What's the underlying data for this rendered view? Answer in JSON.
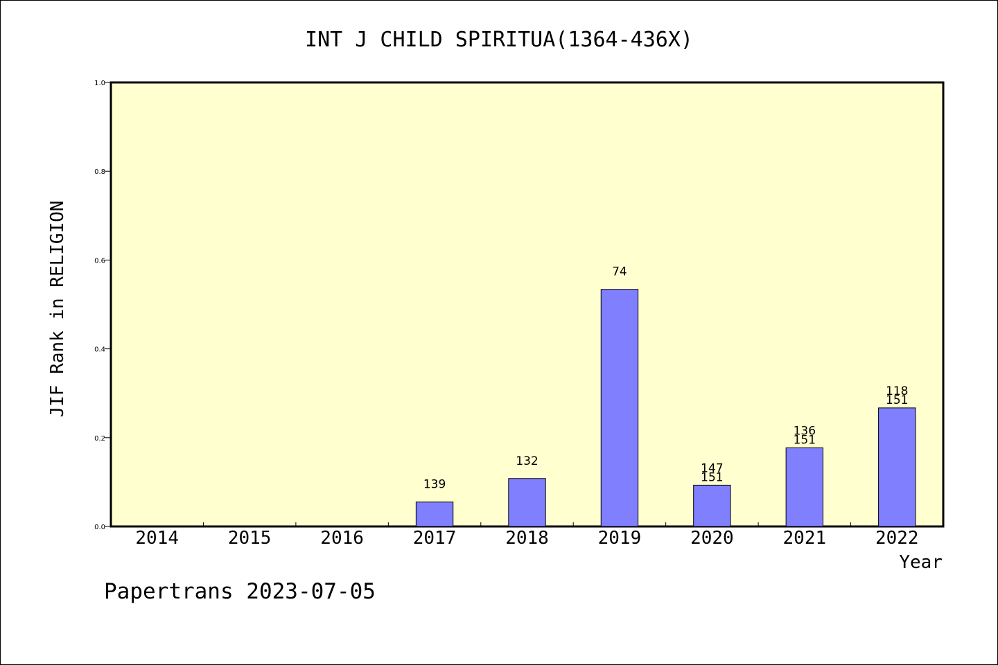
{
  "chart_data": {
    "type": "bar",
    "title": "INT J CHILD SPIRITUA(1364-436X)",
    "xlabel": "Year",
    "ylabel": "JIF Rank in RELIGION",
    "footer": "Papertrans 2023-07-05",
    "categories": [
      "2014",
      "2015",
      "2016",
      "2017",
      "2018",
      "2019",
      "2020",
      "2021",
      "2022"
    ],
    "values": [
      null,
      null,
      null,
      0.055,
      0.108,
      0.534,
      0.093,
      0.177,
      0.267
    ],
    "labels": [
      [],
      [],
      [],
      [
        "139"
      ],
      [
        "132"
      ],
      [
        "74"
      ],
      [
        "147",
        "151"
      ],
      [
        "136",
        "151"
      ],
      [
        "118",
        "151"
      ]
    ],
    "ylim": [
      0,
      1.0
    ],
    "yticks": [
      "0.0",
      "0.2",
      "0.4",
      "0.6",
      "0.8",
      "1.0"
    ],
    "grid": false,
    "colors": {
      "plot_background": "#ffffd0",
      "bar_fill": "#8080ff",
      "bar_stroke": "#000000"
    }
  }
}
